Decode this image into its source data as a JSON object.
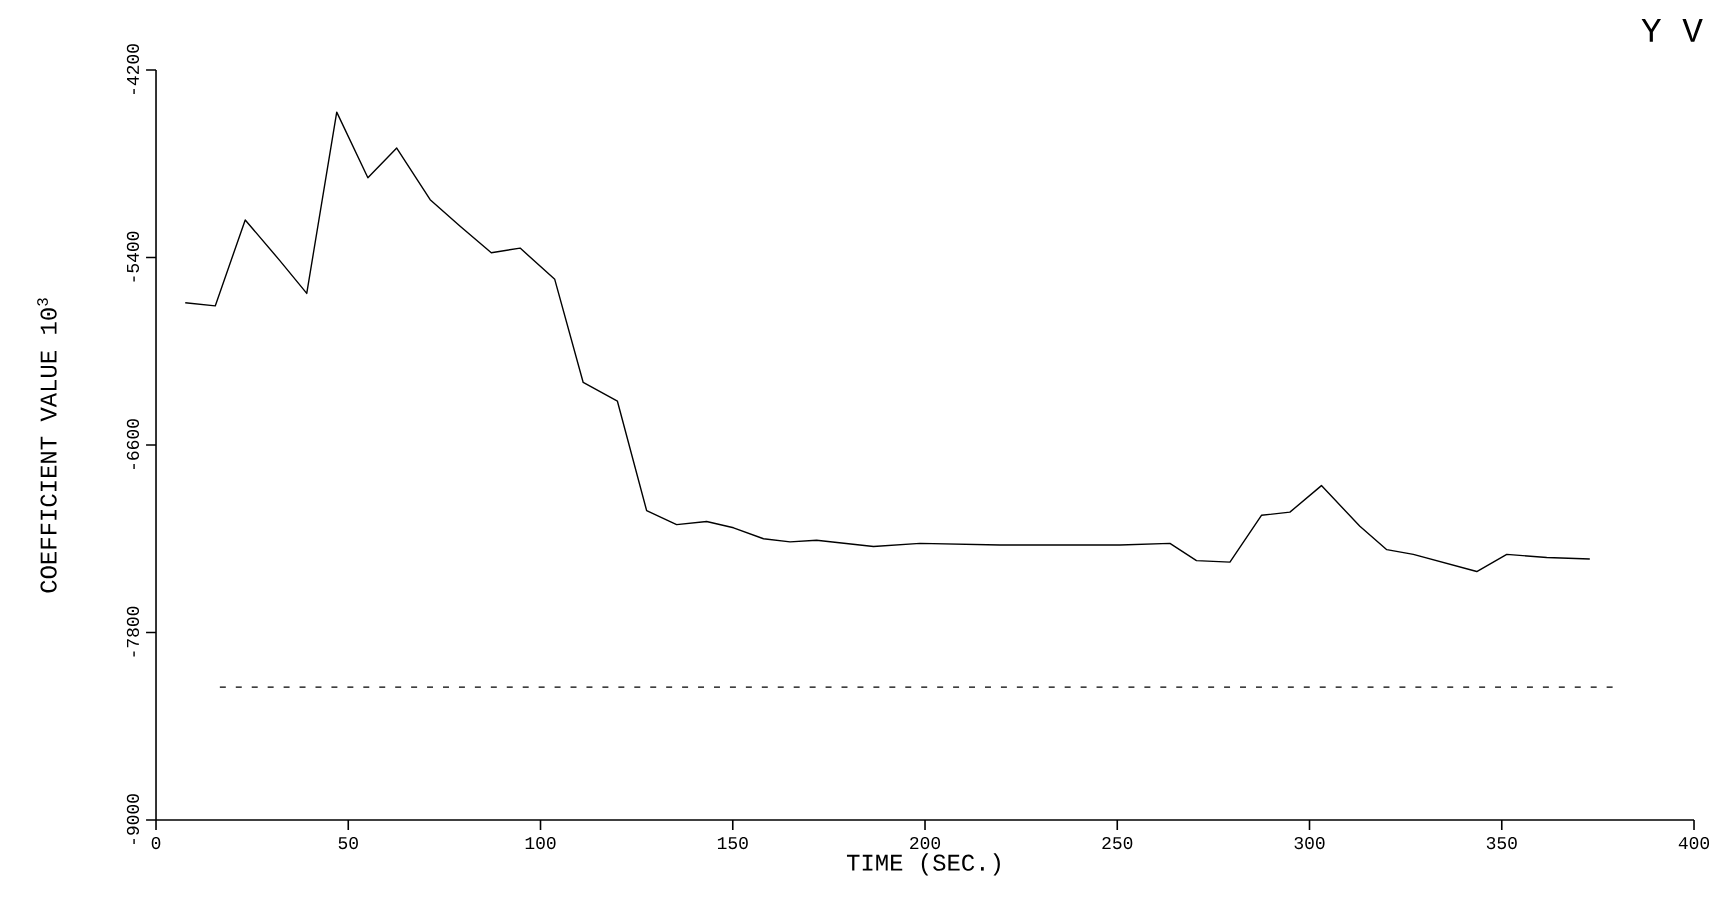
{
  "chart_data": {
    "type": "line",
    "title": "Y V",
    "xlabel": "TIME (SEC.)",
    "ylabel": "COEFFICIENT VALUE 10$^{3}$",
    "xlim": [
      0,
      400
    ],
    "xticks": [
      0,
      50,
      100,
      150,
      200,
      250,
      300,
      350,
      400
    ],
    "ylim": [
      -9000,
      -4200
    ],
    "yticks": [
      -9000,
      -7800,
      -6600,
      -5400,
      -4200
    ],
    "grid": false,
    "marker": "none",
    "series": [
      {
        "color": "#000000",
        "line_style": "solid",
        "x": [
          7.6,
          15.4,
          23.2,
          32.2,
          39.2,
          47,
          55.1,
          62.6,
          71.3,
          79.1,
          87.2,
          94.7,
          103.7,
          111.1,
          120,
          127.6,
          135.4,
          143.2,
          150.2,
          158,
          164.9,
          171.8,
          186.6,
          198.7,
          219.5,
          250.7,
          263.7,
          270.6,
          279.3,
          287.5,
          294.9,
          303.1,
          313.1,
          320.1,
          327,
          343.5,
          351.3,
          361.7,
          372.9
        ],
        "values": [
          -5690,
          -5710,
          -5160,
          -5420,
          -5630,
          -4470,
          -4890,
          -4700,
          -5030,
          -5200,
          -5370,
          -5340,
          -5540,
          -6200,
          -6320,
          -7020,
          -7110,
          -7090,
          -7130,
          -7200,
          -7220,
          -7210,
          -7250,
          -7230,
          -7240,
          -7240,
          -7230,
          -7340,
          -7350,
          -7050,
          -7030,
          -6860,
          -7120,
          -7270,
          -7300,
          -7410,
          -7300,
          -7320,
          -7330
        ]
      },
      {
        "color": "#000000",
        "line_style": "dashed",
        "x": [
          16.6,
          379
        ],
        "values": [
          -8150,
          -8150
        ]
      }
    ]
  }
}
